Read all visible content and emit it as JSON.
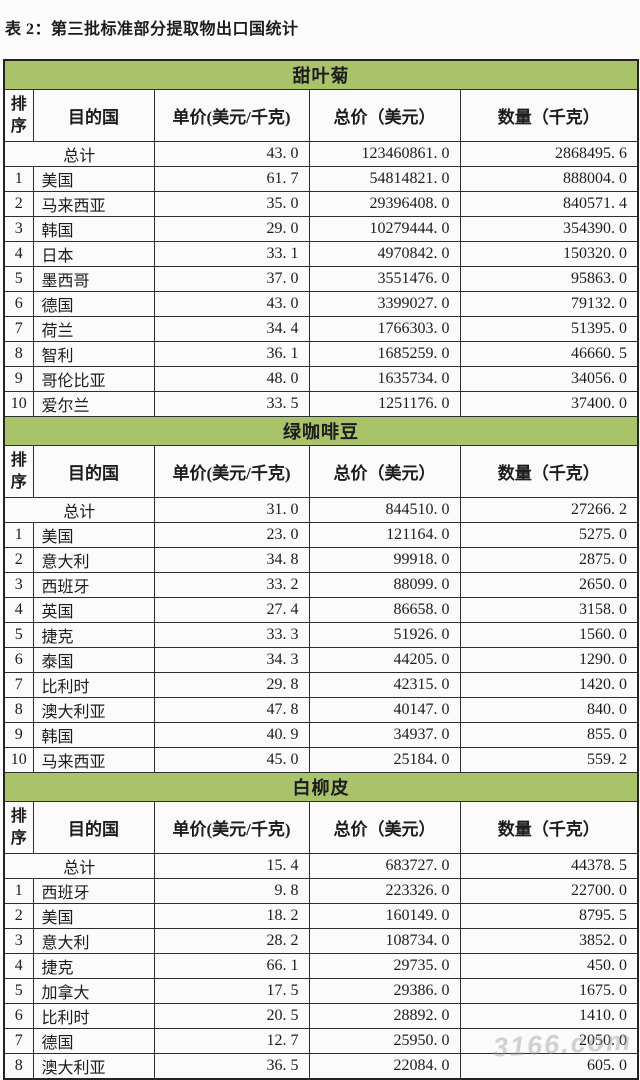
{
  "page": {
    "title": "表 2：第三批标准部分提取物出口国统计",
    "watermark": "3166.com"
  },
  "columns": [
    "排序",
    "目的国",
    "单价(美元/千克)",
    "总价（美元）",
    "数量（千克）"
  ],
  "total_label": "总计",
  "colors": {
    "section_bar": "#a9c36a",
    "border": "#2e2e2e",
    "text": "#1c1c1c"
  },
  "sections": [
    {
      "name": "甜叶菊",
      "total": [
        "43. 0",
        "123460861. 0",
        "2868495. 6"
      ],
      "rows": [
        [
          "1",
          "美国",
          "61. 7",
          "54814821. 0",
          "888004. 0"
        ],
        [
          "2",
          "马来西亚",
          "35. 0",
          "29396408. 0",
          "840571. 4"
        ],
        [
          "3",
          "韩国",
          "29. 0",
          "10279444. 0",
          "354390. 0"
        ],
        [
          "4",
          "日本",
          "33. 1",
          "4970842. 0",
          "150320. 0"
        ],
        [
          "5",
          "墨西哥",
          "37. 0",
          "3551476. 0",
          "95863. 0"
        ],
        [
          "6",
          "德国",
          "43. 0",
          "3399027. 0",
          "79132. 0"
        ],
        [
          "7",
          "荷兰",
          "34. 4",
          "1766303. 0",
          "51395. 0"
        ],
        [
          "8",
          "智利",
          "36. 1",
          "1685259. 0",
          "46660. 5"
        ],
        [
          "9",
          "哥伦比亚",
          "48. 0",
          "1635734. 0",
          "34056. 0"
        ],
        [
          "10",
          "爱尔兰",
          "33. 5",
          "1251176. 0",
          "37400. 0"
        ]
      ]
    },
    {
      "name": "绿咖啡豆",
      "total": [
        "31. 0",
        "844510. 0",
        "27266. 2"
      ],
      "rows": [
        [
          "1",
          "美国",
          "23. 0",
          "121164. 0",
          "5275. 0"
        ],
        [
          "2",
          "意大利",
          "34. 8",
          "99918. 0",
          "2875. 0"
        ],
        [
          "3",
          "西班牙",
          "33. 2",
          "88099. 0",
          "2650. 0"
        ],
        [
          "4",
          "英国",
          "27. 4",
          "86658. 0",
          "3158. 0"
        ],
        [
          "5",
          "捷克",
          "33. 3",
          "51926. 0",
          "1560. 0"
        ],
        [
          "6",
          "泰国",
          "34. 3",
          "44205. 0",
          "1290. 0"
        ],
        [
          "7",
          "比利时",
          "29. 8",
          "42315. 0",
          "1420. 0"
        ],
        [
          "8",
          "澳大利亚",
          "47. 8",
          "40147. 0",
          "840. 0"
        ],
        [
          "9",
          "韩国",
          "40. 9",
          "34937. 0",
          "855. 0"
        ],
        [
          "10",
          "马来西亚",
          "45. 0",
          "25184. 0",
          "559. 2"
        ]
      ]
    },
    {
      "name": "白柳皮",
      "total": [
        "15. 4",
        "683727. 0",
        "44378. 5"
      ],
      "rows": [
        [
          "1",
          "西班牙",
          "9. 8",
          "223326. 0",
          "22700. 0"
        ],
        [
          "2",
          "美国",
          "18. 2",
          "160149. 0",
          "8795. 5"
        ],
        [
          "3",
          "意大利",
          "28. 2",
          "108734. 0",
          "3852. 0"
        ],
        [
          "4",
          "捷克",
          "66. 1",
          "29735. 0",
          "450. 0"
        ],
        [
          "5",
          "加拿大",
          "17. 5",
          "29386. 0",
          "1675. 0"
        ],
        [
          "6",
          "比利时",
          "20. 5",
          "28892. 0",
          "1410. 0"
        ],
        [
          "7",
          "德国",
          "12. 7",
          "25950. 0",
          "2050. 0"
        ],
        [
          "8",
          "澳大利亚",
          "36. 5",
          "22084. 0",
          "605. 0"
        ]
      ]
    }
  ]
}
